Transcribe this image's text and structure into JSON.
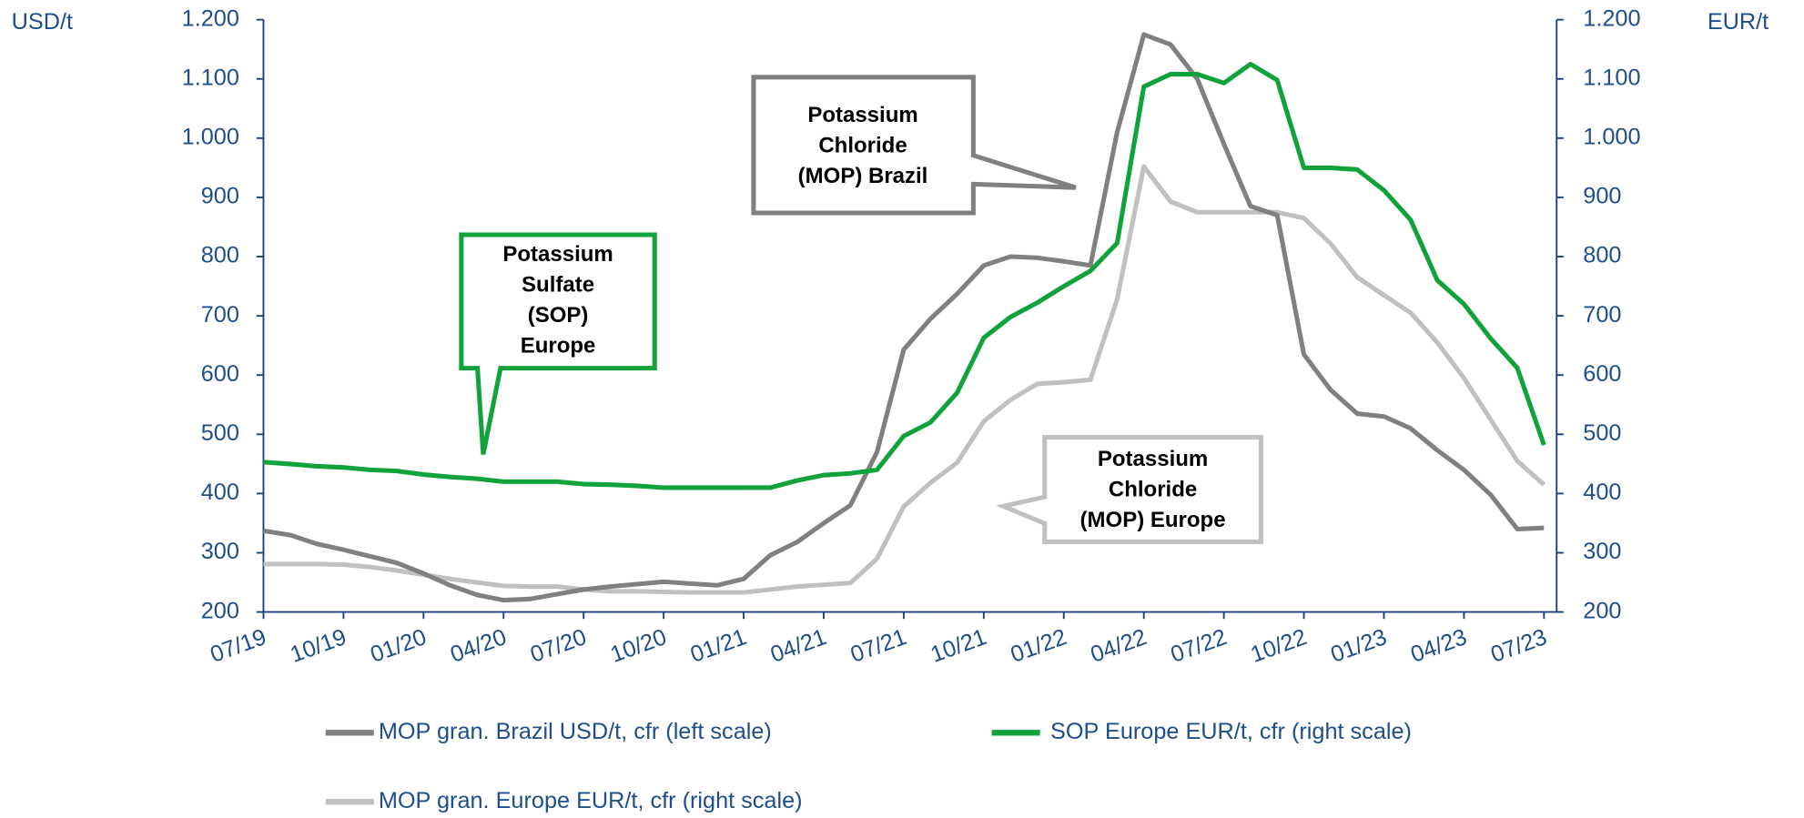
{
  "chart_data": {
    "type": "line",
    "y_label": "USD/t",
    "y2_label": "EUR/t",
    "categories": [
      "07/19",
      null,
      null,
      "10/19",
      null,
      null,
      "01/20",
      null,
      null,
      "04/20",
      null,
      null,
      "07/20",
      null,
      null,
      "10/20",
      null,
      null,
      "01/21",
      null,
      null,
      "04/21",
      null,
      null,
      "07/21",
      null,
      null,
      "10/21",
      null,
      null,
      "01/22",
      null,
      null,
      "04/22",
      null,
      null,
      "07/22",
      null,
      null,
      "10/22",
      null,
      null,
      "01/23",
      null,
      null,
      "04/23",
      null,
      null,
      "07/23"
    ],
    "ylim": [
      200,
      1200
    ],
    "yticks": [
      200,
      300,
      400,
      500,
      600,
      700,
      800,
      900,
      {
        "value": 1000,
        "label": "1.000"
      },
      {
        "value": 1100,
        "label": "1.100"
      },
      {
        "value": 1200,
        "label": "1.200"
      }
    ],
    "y2lim": [
      200,
      1200
    ],
    "y2ticks": [
      200,
      300,
      400,
      500,
      600,
      700,
      800,
      900,
      {
        "value": 1000,
        "label": "1.000"
      },
      {
        "value": 1100,
        "label": "1.100"
      },
      {
        "value": 1200,
        "label": "1.200"
      }
    ],
    "series": [
      {
        "name": "MOP gran. Brazil USD/t, cfr (left scale)",
        "color": "#808080",
        "axis": "y",
        "values": [
          337,
          330,
          315,
          305,
          294,
          283,
          265,
          245,
          229,
          220,
          222,
          230,
          238,
          243,
          247,
          251,
          248,
          245,
          256,
          296,
          318,
          350,
          380,
          470,
          643,
          695,
          737,
          785,
          800,
          798,
          792,
          785,
          1010,
          1175,
          1158,
          1100,
          990,
          885,
          870,
          635,
          575,
          535,
          530,
          510,
          473,
          440,
          398,
          340,
          342
        ]
      },
      {
        "name": "SOP Europe EUR/t, cfr (right scale)",
        "color": "#12a23c",
        "axis": "y2",
        "values": [
          453,
          450,
          446,
          444,
          440,
          438,
          432,
          428,
          425,
          420,
          420,
          420,
          416,
          415,
          413,
          410,
          410,
          410,
          410,
          410,
          422,
          431,
          434,
          440,
          497,
          520,
          570,
          663,
          698,
          722,
          750,
          776,
          823,
          1087,
          1108,
          1108,
          1093,
          1125,
          1098,
          950,
          950,
          947,
          912,
          862,
          760,
          720,
          662,
          612,
          482
        ]
      },
      {
        "name": "MOP gran. Europe EUR/t, cfr (right scale)",
        "color": "#c0c0c0",
        "axis": "y2",
        "values": [
          281,
          281,
          281,
          280,
          276,
          270,
          263,
          256,
          250,
          244,
          243,
          243,
          238,
          235,
          235,
          234,
          233,
          233,
          233,
          238,
          243,
          246,
          249,
          290,
          378,
          418,
          452,
          522,
          558,
          585,
          588,
          592,
          728,
          952,
          893,
          875,
          875,
          875,
          875,
          865,
          822,
          765,
          735,
          705,
          655,
          595,
          525,
          455,
          415
        ]
      }
    ],
    "annotations": [
      {
        "lines": [
          "Potassium",
          "Chloride",
          "(MOP) Brazil"
        ],
        "color": "#808080"
      },
      {
        "lines": [
          "Potassium",
          "Sulfate",
          "(SOP)",
          "Europe"
        ],
        "color": "#12a23c"
      },
      {
        "lines": [
          "Potassium",
          "Chloride",
          "(MOP) Europe"
        ],
        "color": "#c0c0c0"
      }
    ]
  }
}
